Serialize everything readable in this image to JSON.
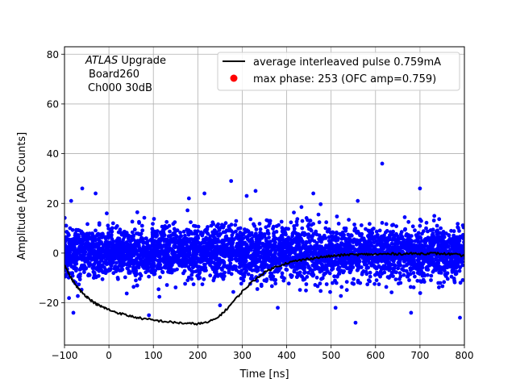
{
  "chart_data": {
    "type": "scatter",
    "title": "",
    "xlabel": "Time [ns]",
    "ylabel": "Amplitude [ADC Counts]",
    "xlim": [
      -100,
      800
    ],
    "ylim": [
      -37,
      83
    ],
    "x_ticks": [
      -100,
      0,
      100,
      200,
      300,
      400,
      500,
      600,
      700,
      800
    ],
    "y_ticks": [
      -20,
      0,
      20,
      40,
      60,
      80
    ],
    "grid": true,
    "legend_position": "top-right",
    "annotation": {
      "experiment": "ATLAS",
      "experiment_suffix": " Upgrade",
      "line2": "Board260",
      "line3": "Ch000 30dB"
    },
    "series": [
      {
        "name": "average interleaved pulse 0.759mA",
        "kind": "line",
        "color": "#000000",
        "x": [
          -100,
          -90,
          -80,
          -70,
          -60,
          -50,
          -40,
          -30,
          -20,
          -10,
          0,
          20,
          40,
          60,
          80,
          100,
          120,
          140,
          160,
          180,
          200,
          220,
          240,
          260,
          280,
          300,
          320,
          340,
          360,
          380,
          400,
          420,
          440,
          460,
          480,
          500,
          520,
          540,
          560,
          580,
          600,
          620,
          640,
          660,
          680,
          700,
          720,
          740,
          760,
          780,
          800
        ],
        "y": [
          -4.5,
          -8.5,
          -11.5,
          -14,
          -16,
          -17.5,
          -19,
          -20.3,
          -21.3,
          -22,
          -22.8,
          -24,
          -25,
          -25.8,
          -26.5,
          -27,
          -27.4,
          -27.8,
          -28.1,
          -28.4,
          -28.4,
          -28,
          -26.5,
          -23.5,
          -19.5,
          -15.5,
          -12,
          -9,
          -6.8,
          -5.2,
          -4,
          -3.2,
          -2.6,
          -2,
          -1.6,
          -1.2,
          -0.9,
          -0.6,
          -0.6,
          -0.5,
          -0.5,
          -0.4,
          -0.3,
          -0.3,
          -0.2,
          -0.2,
          -0.1,
          -0.2,
          -0.3,
          -0.6,
          -1.2
        ]
      },
      {
        "name": "max phase: 253 (OFC amp=0.759)",
        "kind": "marker",
        "color": "#ff0000",
        "points": []
      },
      {
        "name": "raw samples",
        "kind": "scatter",
        "color": "#0000ff",
        "distribution": "dense noise band, mean ~0, typical spread -10..+10, excursions to about +/-25",
        "outliers": [
          {
            "x": 615,
            "y": 36
          },
          {
            "x": 275,
            "y": 29
          },
          {
            "x": -60,
            "y": 26
          },
          {
            "x": 700,
            "y": 26
          },
          {
            "x": 330,
            "y": 25
          },
          {
            "x": 215,
            "y": 24
          },
          {
            "x": 460,
            "y": 24
          },
          {
            "x": -30,
            "y": 24
          },
          {
            "x": 310,
            "y": 23
          },
          {
            "x": 180,
            "y": 22
          },
          {
            "x": -85,
            "y": 21
          },
          {
            "x": 560,
            "y": 21
          },
          {
            "x": 555,
            "y": -28
          },
          {
            "x": 790,
            "y": -26
          },
          {
            "x": -80,
            "y": -24
          },
          {
            "x": 680,
            "y": -24
          },
          {
            "x": 90,
            "y": -25
          },
          {
            "x": 380,
            "y": -22
          },
          {
            "x": 250,
            "y": -21
          },
          {
            "x": 510,
            "y": -22
          }
        ]
      }
    ]
  }
}
